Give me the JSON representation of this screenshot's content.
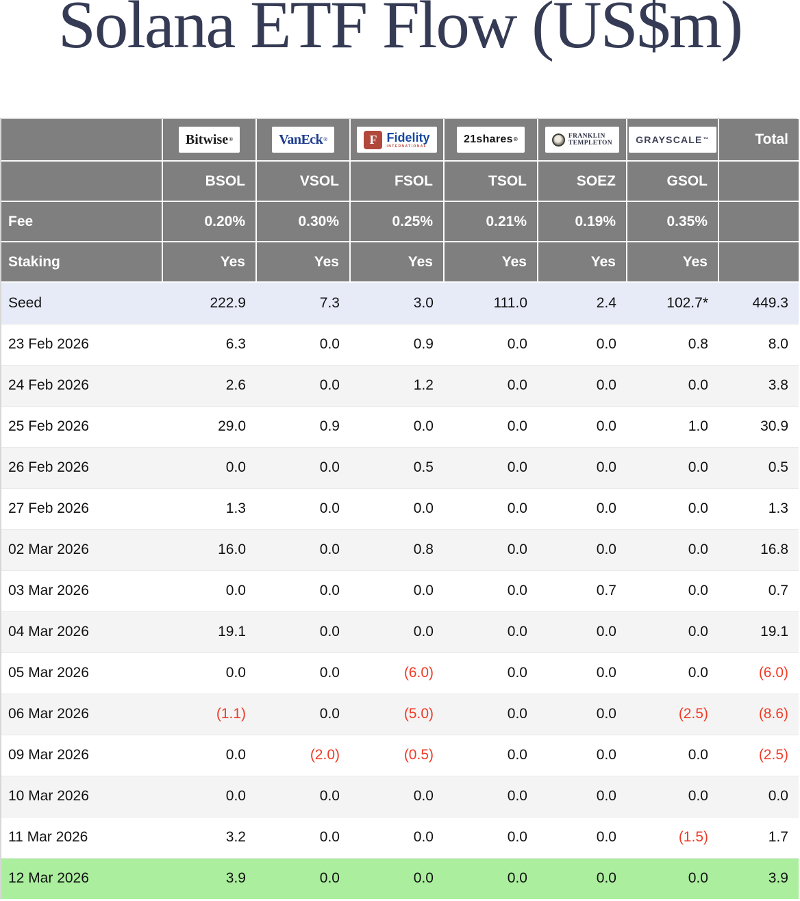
{
  "title": "Solana ETF Flow (US$m)",
  "chart_data": {
    "type": "table",
    "title": "Solana ETF Flow (US$m)",
    "units": "US$m",
    "negative_format": "parentheses-red",
    "labels": {
      "fee": "Fee",
      "staking": "Staking",
      "total": "Total",
      "seed": "Seed"
    },
    "providers": [
      {
        "name": "Bitwise",
        "logo": "bitwise",
        "ticker": "BSOL",
        "fee": "0.20%",
        "staking": "Yes"
      },
      {
        "name": "VanEck",
        "logo": "vaneck",
        "ticker": "VSOL",
        "fee": "0.30%",
        "staking": "Yes"
      },
      {
        "name": "Fidelity International",
        "logo": "fidelity",
        "ticker": "FSOL",
        "fee": "0.25%",
        "staking": "Yes"
      },
      {
        "name": "21shares",
        "logo": "shares21",
        "ticker": "TSOL",
        "fee": "0.21%",
        "staking": "Yes"
      },
      {
        "name": "Franklin Templeton",
        "logo": "franklin",
        "ticker": "SOEZ",
        "fee": "0.19%",
        "staking": "Yes"
      },
      {
        "name": "Grayscale",
        "logo": "grayscale",
        "ticker": "GSOL",
        "fee": "0.35%",
        "staking": "Yes"
      }
    ],
    "seed_row": {
      "label": "Seed",
      "values": [
        "222.9",
        "7.3",
        "3.0",
        "111.0",
        "2.4",
        "102.7*"
      ],
      "total": "449.3"
    },
    "flow_rows": [
      {
        "date": "23 Feb 2026",
        "values": [
          "6.3",
          "0.0",
          "0.9",
          "0.0",
          "0.0",
          "0.8"
        ],
        "total": "8.0"
      },
      {
        "date": "24 Feb 2026",
        "values": [
          "2.6",
          "0.0",
          "1.2",
          "0.0",
          "0.0",
          "0.0"
        ],
        "total": "3.8"
      },
      {
        "date": "25 Feb 2026",
        "values": [
          "29.0",
          "0.9",
          "0.0",
          "0.0",
          "0.0",
          "1.0"
        ],
        "total": "30.9"
      },
      {
        "date": "26 Feb 2026",
        "values": [
          "0.0",
          "0.0",
          "0.5",
          "0.0",
          "0.0",
          "0.0"
        ],
        "total": "0.5"
      },
      {
        "date": "27 Feb 2026",
        "values": [
          "1.3",
          "0.0",
          "0.0",
          "0.0",
          "0.0",
          "0.0"
        ],
        "total": "1.3"
      },
      {
        "date": "02 Mar 2026",
        "values": [
          "16.0",
          "0.0",
          "0.8",
          "0.0",
          "0.0",
          "0.0"
        ],
        "total": "16.8"
      },
      {
        "date": "03 Mar 2026",
        "values": [
          "0.0",
          "0.0",
          "0.0",
          "0.0",
          "0.7",
          "0.0"
        ],
        "total": "0.7"
      },
      {
        "date": "04 Mar 2026",
        "values": [
          "19.1",
          "0.0",
          "0.0",
          "0.0",
          "0.0",
          "0.0"
        ],
        "total": "19.1"
      },
      {
        "date": "05 Mar 2026",
        "values": [
          "0.0",
          "0.0",
          "(6.0)",
          "0.0",
          "0.0",
          "0.0"
        ],
        "total": "(6.0)"
      },
      {
        "date": "06 Mar 2026",
        "values": [
          "(1.1)",
          "0.0",
          "(5.0)",
          "0.0",
          "0.0",
          "(2.5)"
        ],
        "total": "(8.6)"
      },
      {
        "date": "09 Mar 2026",
        "values": [
          "0.0",
          "(2.0)",
          "(0.5)",
          "0.0",
          "0.0",
          "0.0"
        ],
        "total": "(2.5)"
      },
      {
        "date": "10 Mar 2026",
        "values": [
          "0.0",
          "0.0",
          "0.0",
          "0.0",
          "0.0",
          "0.0"
        ],
        "total": "0.0"
      },
      {
        "date": "11 Mar 2026",
        "values": [
          "3.2",
          "0.0",
          "0.0",
          "0.0",
          "0.0",
          "(1.5)"
        ],
        "total": "1.7"
      },
      {
        "date": "12 Mar 2026",
        "values": [
          "3.9",
          "0.0",
          "0.0",
          "0.0",
          "0.0",
          "0.0"
        ],
        "total": "3.9",
        "highlight": true
      }
    ]
  },
  "logos": {
    "bitwise": "Bitwise",
    "bitwise_mark": "®",
    "vaneck": "VanEck",
    "vaneck_mark": "®",
    "fidelity_f": "F",
    "fidelity": "Fidelity",
    "fidelity_sub": "INTERNATIONAL",
    "shares21": "21shares",
    "shares21_mark": "®",
    "franklin_line1": "FRANKLIN",
    "franklin_line2": "TEMPLETON",
    "grayscale": "GRAYSCALE",
    "grayscale_mark": "™"
  },
  "colors": {
    "header-gray": "#7f7f7f",
    "seed-blue": "#e7ebf8",
    "alt-gray": "#f4f4f4",
    "highlight-green": "#abef9e",
    "negative-red": "#ef3a26",
    "title-navy": "#353b54"
  }
}
